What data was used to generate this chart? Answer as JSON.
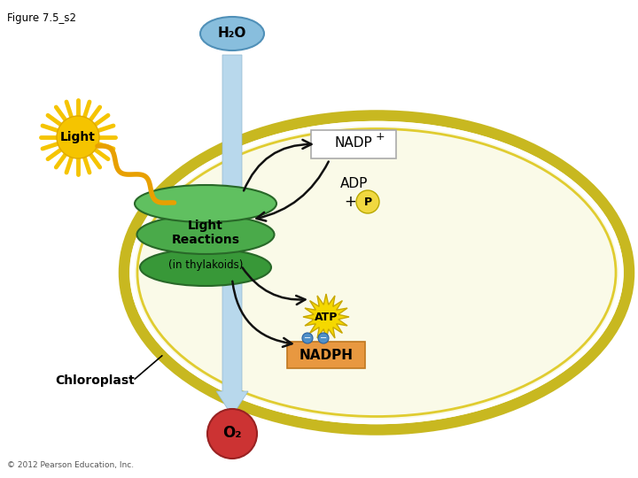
{
  "title": "Figure 7.5_s2",
  "background_color": "#ffffff",
  "chloroplast_fill": "#fafae8",
  "chloroplast_outer_stroke": "#c8b820",
  "chloroplast_inner_stroke": "#e0cc30",
  "h2o_circle_color": "#7ab4d8",
  "h2o_text": "H₂O",
  "o2_circle_color": "#cc3333",
  "o2_text": "O₂",
  "light_text": "Light",
  "light_sun_color": "#f5c400",
  "light_arrow_color": "#e8a000",
  "nadp_box_fill": "#ffffff",
  "nadp_box_stroke": "#aaaaaa",
  "nadp_text": "NADP",
  "nadp_sup": "+",
  "adp_text": "ADP",
  "p_circle_color": "#f0d840",
  "p_circle_stroke": "#b8a800",
  "p_text": "P",
  "atp_star_color": "#f5d800",
  "atp_text": "ATP",
  "nadph_box_fill": "#e89840",
  "nadph_box_stroke": "#c07820",
  "nadph_text": "NADPH",
  "nadph_dot_color": "#5090c8",
  "lr_text1": "Light",
  "lr_text2": "Reactions",
  "lr_text3": "(in thylakoids)",
  "thylakoid_top_color": "#60c060",
  "thylakoid_mid_color": "#4aaa4a",
  "thylakoid_bot_color": "#389838",
  "thylakoid_edge": "#286828",
  "arrow_color": "#111111",
  "blue_arrow_fill": "#b8d8ec",
  "blue_arrow_edge": "#90b8d0",
  "chloroplast_label": "Chloroplast",
  "copyright": "© 2012 Pearson Education, Inc."
}
